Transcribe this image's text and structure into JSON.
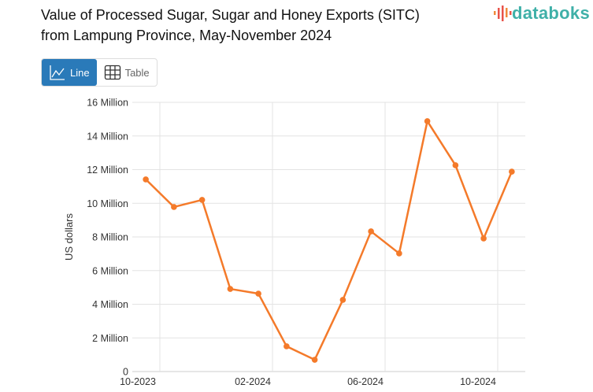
{
  "title_line1": "Value of Processed Sugar, Sugar and Honey Exports (SITC)",
  "title_line2": "from Lampung Province, May-November 2024",
  "logo": "databoks",
  "view_toggle": {
    "line_label": "Line",
    "table_label": "Table",
    "selected": "Line",
    "line_icon": "line-chart-icon",
    "table_icon": "table-grid-icon"
  },
  "colors": {
    "series": "#f47a2a",
    "accent": "#2a7ab9",
    "logo": "#3fb0a8"
  },
  "chart_data": {
    "type": "line",
    "title": "Value of Processed Sugar, Sugar and Honey Exports (SITC) from Lampung Province, May-November 2024",
    "ylabel": "US dollars",
    "xlabel": "",
    "ylim": [
      0,
      16000000
    ],
    "yticks": [
      0,
      2000000,
      4000000,
      6000000,
      8000000,
      10000000,
      12000000,
      14000000,
      16000000
    ],
    "ytick_labels": [
      "0",
      "2 Million",
      "4 Million",
      "6 Million",
      "8 Million",
      "10 Million",
      "12 Million",
      "14 Million",
      "16 Million"
    ],
    "xtick_labels": [
      "10-2023",
      "02-2024",
      "06-2024",
      "10-2024"
    ],
    "x": [
      "2023-09",
      "2023-10",
      "2023-11",
      "2023-12",
      "2024-01",
      "2024-02",
      "2024-03",
      "2024-04",
      "2024-05",
      "2024-06",
      "2024-07",
      "2024-08",
      "2024-09",
      "2024-10"
    ],
    "values": [
      11420000,
      9780000,
      10200000,
      4910000,
      4630000,
      1500000,
      700000,
      4260000,
      8330000,
      7020000,
      14880000,
      12260000,
      7910000,
      11880000
    ],
    "grid": true,
    "legend": "none"
  }
}
